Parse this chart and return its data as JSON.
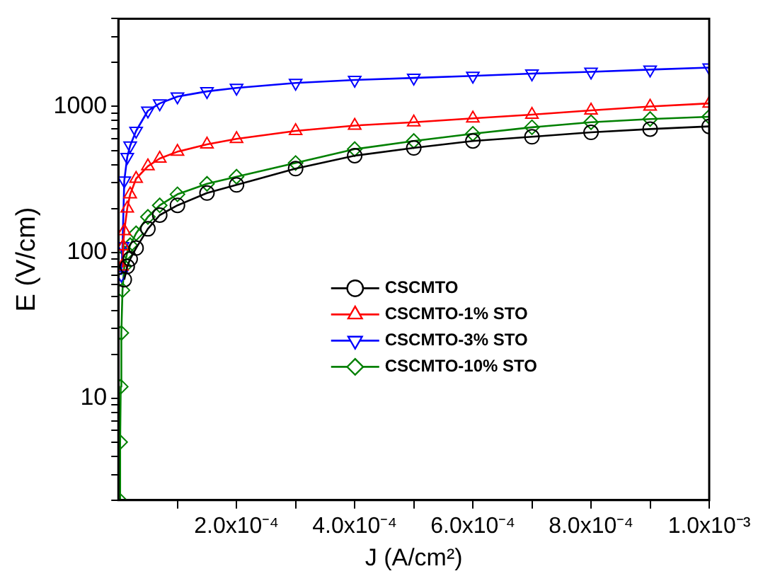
{
  "chart_data": {
    "type": "line",
    "xlabel": "J (A/cm²)",
    "ylabel": "E (V/cm)",
    "log": "y",
    "grid": false,
    "legend": "center",
    "line_style": "solid",
    "xlim": [
      0,
      0.001
    ],
    "xticks": [
      {
        "value": 0.0001,
        "label": null
      },
      {
        "value": 0.0002,
        "label": "2.0x10⁻⁴"
      },
      {
        "value": 0.0003,
        "label": null
      },
      {
        "value": 0.0004,
        "label": "4.0x10⁻⁴"
      },
      {
        "value": 0.0005,
        "label": null
      },
      {
        "value": 0.0006,
        "label": "6.0x10⁻⁴"
      },
      {
        "value": 0.0007,
        "label": null
      },
      {
        "value": 0.0008,
        "label": "8.0x10⁻⁴"
      },
      {
        "value": 0.0009,
        "label": null
      },
      {
        "value": 0.001,
        "label": "1.0x10⁻³"
      }
    ],
    "ylim": [
      2,
      4000
    ],
    "yticks": [
      {
        "value": 2,
        "label": null
      },
      {
        "value": 3,
        "label": null
      },
      {
        "value": 4,
        "label": null
      },
      {
        "value": 5,
        "label": null
      },
      {
        "value": 6,
        "label": null
      },
      {
        "value": 7,
        "label": null
      },
      {
        "value": 8,
        "label": null
      },
      {
        "value": 9,
        "label": null
      },
      10,
      {
        "value": 20,
        "label": null
      },
      {
        "value": 30,
        "label": null
      },
      {
        "value": 40,
        "label": null
      },
      {
        "value": 50,
        "label": null
      },
      {
        "value": 60,
        "label": null
      },
      {
        "value": 70,
        "label": null
      },
      {
        "value": 80,
        "label": null
      },
      {
        "value": 90,
        "label": null
      },
      100,
      {
        "value": 200,
        "label": null
      },
      {
        "value": 300,
        "label": null
      },
      {
        "value": 400,
        "label": null
      },
      {
        "value": 500,
        "label": null
      },
      {
        "value": 600,
        "label": null
      },
      {
        "value": 700,
        "label": null
      },
      {
        "value": 800,
        "label": null
      },
      {
        "value": 900,
        "label": null
      },
      1000,
      {
        "value": 2000,
        "label": null
      },
      {
        "value": 3000,
        "label": null
      },
      {
        "value": 4000,
        "label": null
      }
    ],
    "series": [
      {
        "name": "CSCMTO",
        "color": "#000000",
        "marker": "circle",
        "x": [
          1e-05,
          1.5e-05,
          2e-05,
          3e-05,
          5e-05,
          7e-05,
          0.0001,
          0.00015,
          0.0002,
          0.0003,
          0.0004,
          0.0005,
          0.0006,
          0.0007,
          0.0008,
          0.0009,
          0.001
        ],
        "values": [
          65,
          80,
          90,
          107,
          145,
          180,
          210,
          255,
          290,
          375,
          460,
          520,
          580,
          620,
          665,
          700,
          730
        ]
      },
      {
        "name": "CSCMTO-1% STO",
        "color": "#ff0000",
        "marker": "triangle",
        "x": [
          6e-06,
          8e-06,
          1e-05,
          1.5e-05,
          2e-05,
          3e-05,
          5e-05,
          7e-05,
          0.0001,
          0.00015,
          0.0002,
          0.0003,
          0.0004,
          0.0005,
          0.0006,
          0.0007,
          0.0008,
          0.0009,
          0.001
        ],
        "values": [
          80,
          110,
          140,
          200,
          250,
          320,
          390,
          440,
          490,
          550,
          600,
          680,
          740,
          780,
          830,
          880,
          940,
          1000,
          1050
        ]
      },
      {
        "name": "CSCMTO-3% STO",
        "color": "#0000ff",
        "marker": "triangle-down",
        "x": [
          5e-06,
          7e-06,
          1e-05,
          1.5e-05,
          2e-05,
          3e-05,
          5e-05,
          7e-05,
          0.0001,
          0.00015,
          0.0002,
          0.0003,
          0.0004,
          0.0005,
          0.0006,
          0.0007,
          0.0008,
          0.0009,
          0.001
        ],
        "values": [
          70,
          110,
          310,
          450,
          540,
          680,
          935,
          1050,
          1170,
          1270,
          1340,
          1450,
          1520,
          1570,
          1620,
          1680,
          1730,
          1790,
          1850
        ]
      },
      {
        "name": "CSCMTO-10% STO",
        "color": "#008000",
        "marker": "diamond",
        "x": [
          2e-06,
          3e-06,
          4e-06,
          5e-06,
          7e-06,
          1e-05,
          1.5e-05,
          2e-05,
          3e-05,
          5e-05,
          7e-05,
          0.0001,
          0.00015,
          0.0002,
          0.0003,
          0.0004,
          0.0005,
          0.0006,
          0.0007,
          0.0008,
          0.0009,
          0.001
        ],
        "values": [
          2,
          5,
          12,
          28,
          55,
          80,
          100,
          112,
          135,
          175,
          210,
          250,
          295,
          330,
          410,
          510,
          580,
          650,
          720,
          780,
          820,
          850
        ]
      }
    ]
  }
}
